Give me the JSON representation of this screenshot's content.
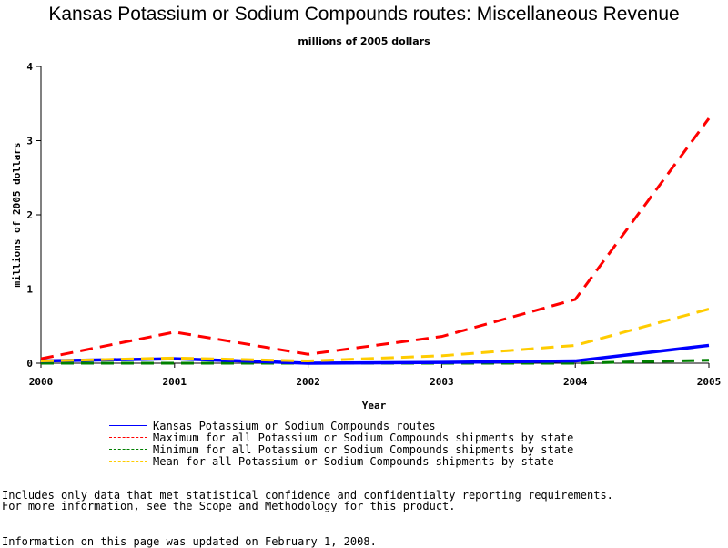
{
  "chart_data": {
    "type": "line",
    "title": "Kansas Potassium or Sodium Compounds routes: Miscellaneous Revenue",
    "subtitle": "millions of 2005 dollars",
    "xlabel": "Year",
    "ylabel": "millions of 2005 dollars",
    "x": [
      2000,
      2001,
      2002,
      2003,
      2004,
      2005
    ],
    "xticks": [
      "2000",
      "2001",
      "2002",
      "2003",
      "2004",
      "2005"
    ],
    "yticks": [
      "0",
      "1",
      "2",
      "3",
      "4"
    ],
    "ylim": [
      0,
      4
    ],
    "xlim": [
      2000,
      2005
    ],
    "grid": false,
    "legend_position": "bottom",
    "series": [
      {
        "name": "Kansas Potassium or Sodium Compounds routes",
        "values": [
          0.03,
          0.06,
          0.0,
          0.01,
          0.03,
          0.24
        ],
        "color": "#0000ff",
        "dash": "solid"
      },
      {
        "name": "Maximum for all Potassium or Sodium Compounds shipments by state",
        "values": [
          0.06,
          0.42,
          0.12,
          0.36,
          0.86,
          3.3
        ],
        "color": "#ff0000",
        "dash": "dashed"
      },
      {
        "name": "Minimum for all Potassium or Sodium Compounds shipments by state",
        "values": [
          0.0,
          0.0,
          0.0,
          0.0,
          0.0,
          0.04
        ],
        "color": "#008000",
        "dash": "dashed"
      },
      {
        "name": "Mean for all Potassium or Sodium Compounds shipments by state",
        "values": [
          0.03,
          0.07,
          0.03,
          0.1,
          0.24,
          0.73
        ],
        "color": "#ffcc00",
        "dash": "dashed"
      }
    ]
  },
  "notes": {
    "line1": "Includes only data that met statistical confidence and confidentialty reporting requirements.",
    "line2": "For more information, see the Scope and Methodology for this product.",
    "line3": "Information on this page was updated on February 1, 2008."
  }
}
